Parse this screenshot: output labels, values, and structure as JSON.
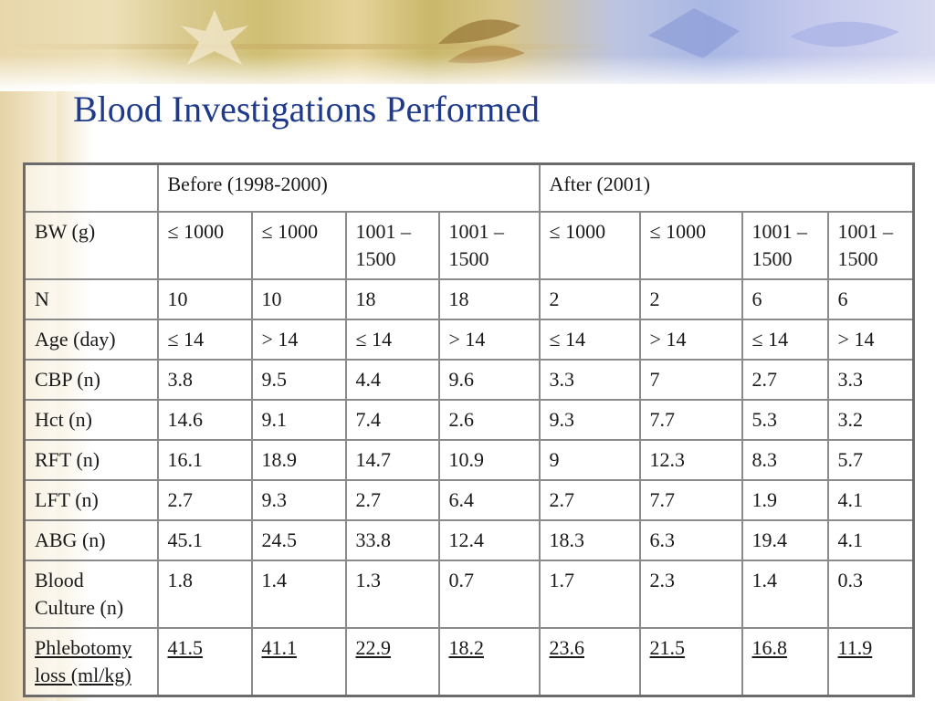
{
  "slide": {
    "title": "Blood Investigations Performed"
  },
  "table": {
    "group_headers": {
      "before": "Before (1998-2000)",
      "after": "After (2001)"
    },
    "rows": [
      {
        "label": "BW (g)",
        "cells": [
          "≤ 1000",
          "≤ 1000",
          "1001 – 1500",
          "1001 – 1500",
          "≤ 1000",
          "≤ 1000",
          "1001 – 1500",
          "1001 – 1500"
        ]
      },
      {
        "label": "N",
        "cells": [
          "10",
          "10",
          "18",
          "18",
          "2",
          "2",
          "6",
          "6"
        ]
      },
      {
        "label": "Age (day)",
        "cells": [
          "≤ 14",
          "> 14",
          "≤ 14",
          "> 14",
          "≤ 14",
          "> 14",
          "≤ 14",
          "> 14"
        ]
      },
      {
        "label": "CBP (n)",
        "cells": [
          "3.8",
          "9.5",
          "4.4",
          "9.6",
          "3.3",
          "7",
          "2.7",
          "3.3"
        ]
      },
      {
        "label": "Hct (n)",
        "cells": [
          "14.6",
          "9.1",
          "7.4",
          "2.6",
          "9.3",
          "7.7",
          "5.3",
          "3.2"
        ]
      },
      {
        "label": "RFT (n)",
        "cells": [
          "16.1",
          "18.9",
          "14.7",
          "10.9",
          "9",
          "12.3",
          "8.3",
          "5.7"
        ]
      },
      {
        "label": "LFT (n)",
        "cells": [
          "2.7",
          "9.3",
          "2.7",
          "6.4",
          "2.7",
          "7.7",
          "1.9",
          "4.1"
        ]
      },
      {
        "label": "ABG (n)",
        "cells": [
          "45.1",
          "24.5",
          "33.8",
          "12.4",
          "18.3",
          "6.3",
          "19.4",
          "4.1"
        ]
      },
      {
        "label": "Blood Culture (n)",
        "cells": [
          "1.8",
          "1.4",
          "1.3",
          "0.7",
          "1.7",
          "2.3",
          "1.4",
          "0.3"
        ]
      },
      {
        "label": "Phlebotomy loss (ml/kg)",
        "cells": [
          "41.5",
          "41.1",
          "22.9",
          "18.2",
          "23.6",
          "21.5",
          "16.8",
          "11.9"
        ]
      }
    ]
  }
}
